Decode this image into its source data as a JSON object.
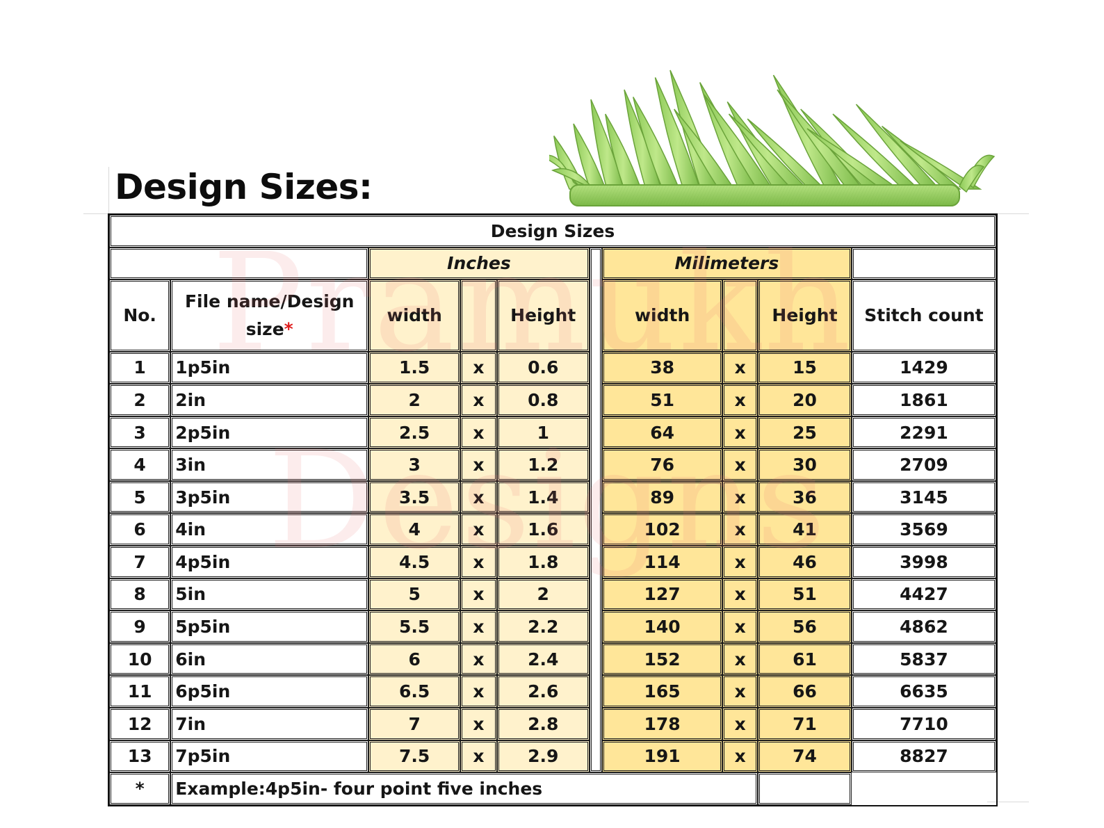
{
  "page": {
    "title": "Design Sizes:"
  },
  "watermark": {
    "line1": "Pramukh",
    "line2": "Designs"
  },
  "table": {
    "title": "Design Sizes",
    "groups": {
      "inches": "Inches",
      "millimeters": "Milimeters"
    },
    "headers": {
      "no": "No.",
      "file_name": "File name/Design size",
      "file_name_marker": "*",
      "inch_width": "width",
      "inch_height": "Height",
      "mm_width": "width",
      "mm_height": "Height",
      "stitch_count": "Stitch count"
    },
    "times_symbol": "x",
    "rows": [
      {
        "no": "1",
        "file": "1p5in",
        "in_w": "1.5",
        "in_h": "0.6",
        "mm_w": "38",
        "mm_h": "15",
        "stitches": "1429"
      },
      {
        "no": "2",
        "file": "2in",
        "in_w": "2",
        "in_h": "0.8",
        "mm_w": "51",
        "mm_h": "20",
        "stitches": "1861"
      },
      {
        "no": "3",
        "file": "2p5in",
        "in_w": "2.5",
        "in_h": "1",
        "mm_w": "64",
        "mm_h": "25",
        "stitches": "2291"
      },
      {
        "no": "4",
        "file": "3in",
        "in_w": "3",
        "in_h": "1.2",
        "mm_w": "76",
        "mm_h": "30",
        "stitches": "2709"
      },
      {
        "no": "5",
        "file": "3p5in",
        "in_w": "3.5",
        "in_h": "1.4",
        "mm_w": "89",
        "mm_h": "36",
        "stitches": "3145"
      },
      {
        "no": "6",
        "file": "4in",
        "in_w": "4",
        "in_h": "1.6",
        "mm_w": "102",
        "mm_h": "41",
        "stitches": "3569"
      },
      {
        "no": "7",
        "file": "4p5in",
        "in_w": "4.5",
        "in_h": "1.8",
        "mm_w": "114",
        "mm_h": "46",
        "stitches": "3998"
      },
      {
        "no": "8",
        "file": "5in",
        "in_w": "5",
        "in_h": "2",
        "mm_w": "127",
        "mm_h": "51",
        "stitches": "4427"
      },
      {
        "no": "9",
        "file": "5p5in",
        "in_w": "5.5",
        "in_h": "2.2",
        "mm_w": "140",
        "mm_h": "56",
        "stitches": "4862"
      },
      {
        "no": "10",
        "file": "6in",
        "in_w": "6",
        "in_h": "2.4",
        "mm_w": "152",
        "mm_h": "61",
        "stitches": "5837"
      },
      {
        "no": "11",
        "file": "6p5in",
        "in_w": "6.5",
        "in_h": "2.6",
        "mm_w": "165",
        "mm_h": "66",
        "stitches": "6635"
      },
      {
        "no": "12",
        "file": "7in",
        "in_w": "7",
        "in_h": "2.8",
        "mm_w": "178",
        "mm_h": "71",
        "stitches": "7710"
      },
      {
        "no": "13",
        "file": "7p5in",
        "in_w": "7.5",
        "in_h": "2.9",
        "mm_w": "191",
        "mm_h": "74",
        "stitches": "8827"
      }
    ],
    "footnote": {
      "marker": "*",
      "text": "Example:4p5in- four point five inches"
    }
  },
  "colors": {
    "inches_fill": "#fff2cc",
    "millimeters_fill": "#ffe699",
    "asterisk": "#e01d1d",
    "grass_light": "#a5d96e",
    "grass_dark": "#6aa33a"
  },
  "icons": {
    "decoration": "grass-embroidery-icon"
  }
}
